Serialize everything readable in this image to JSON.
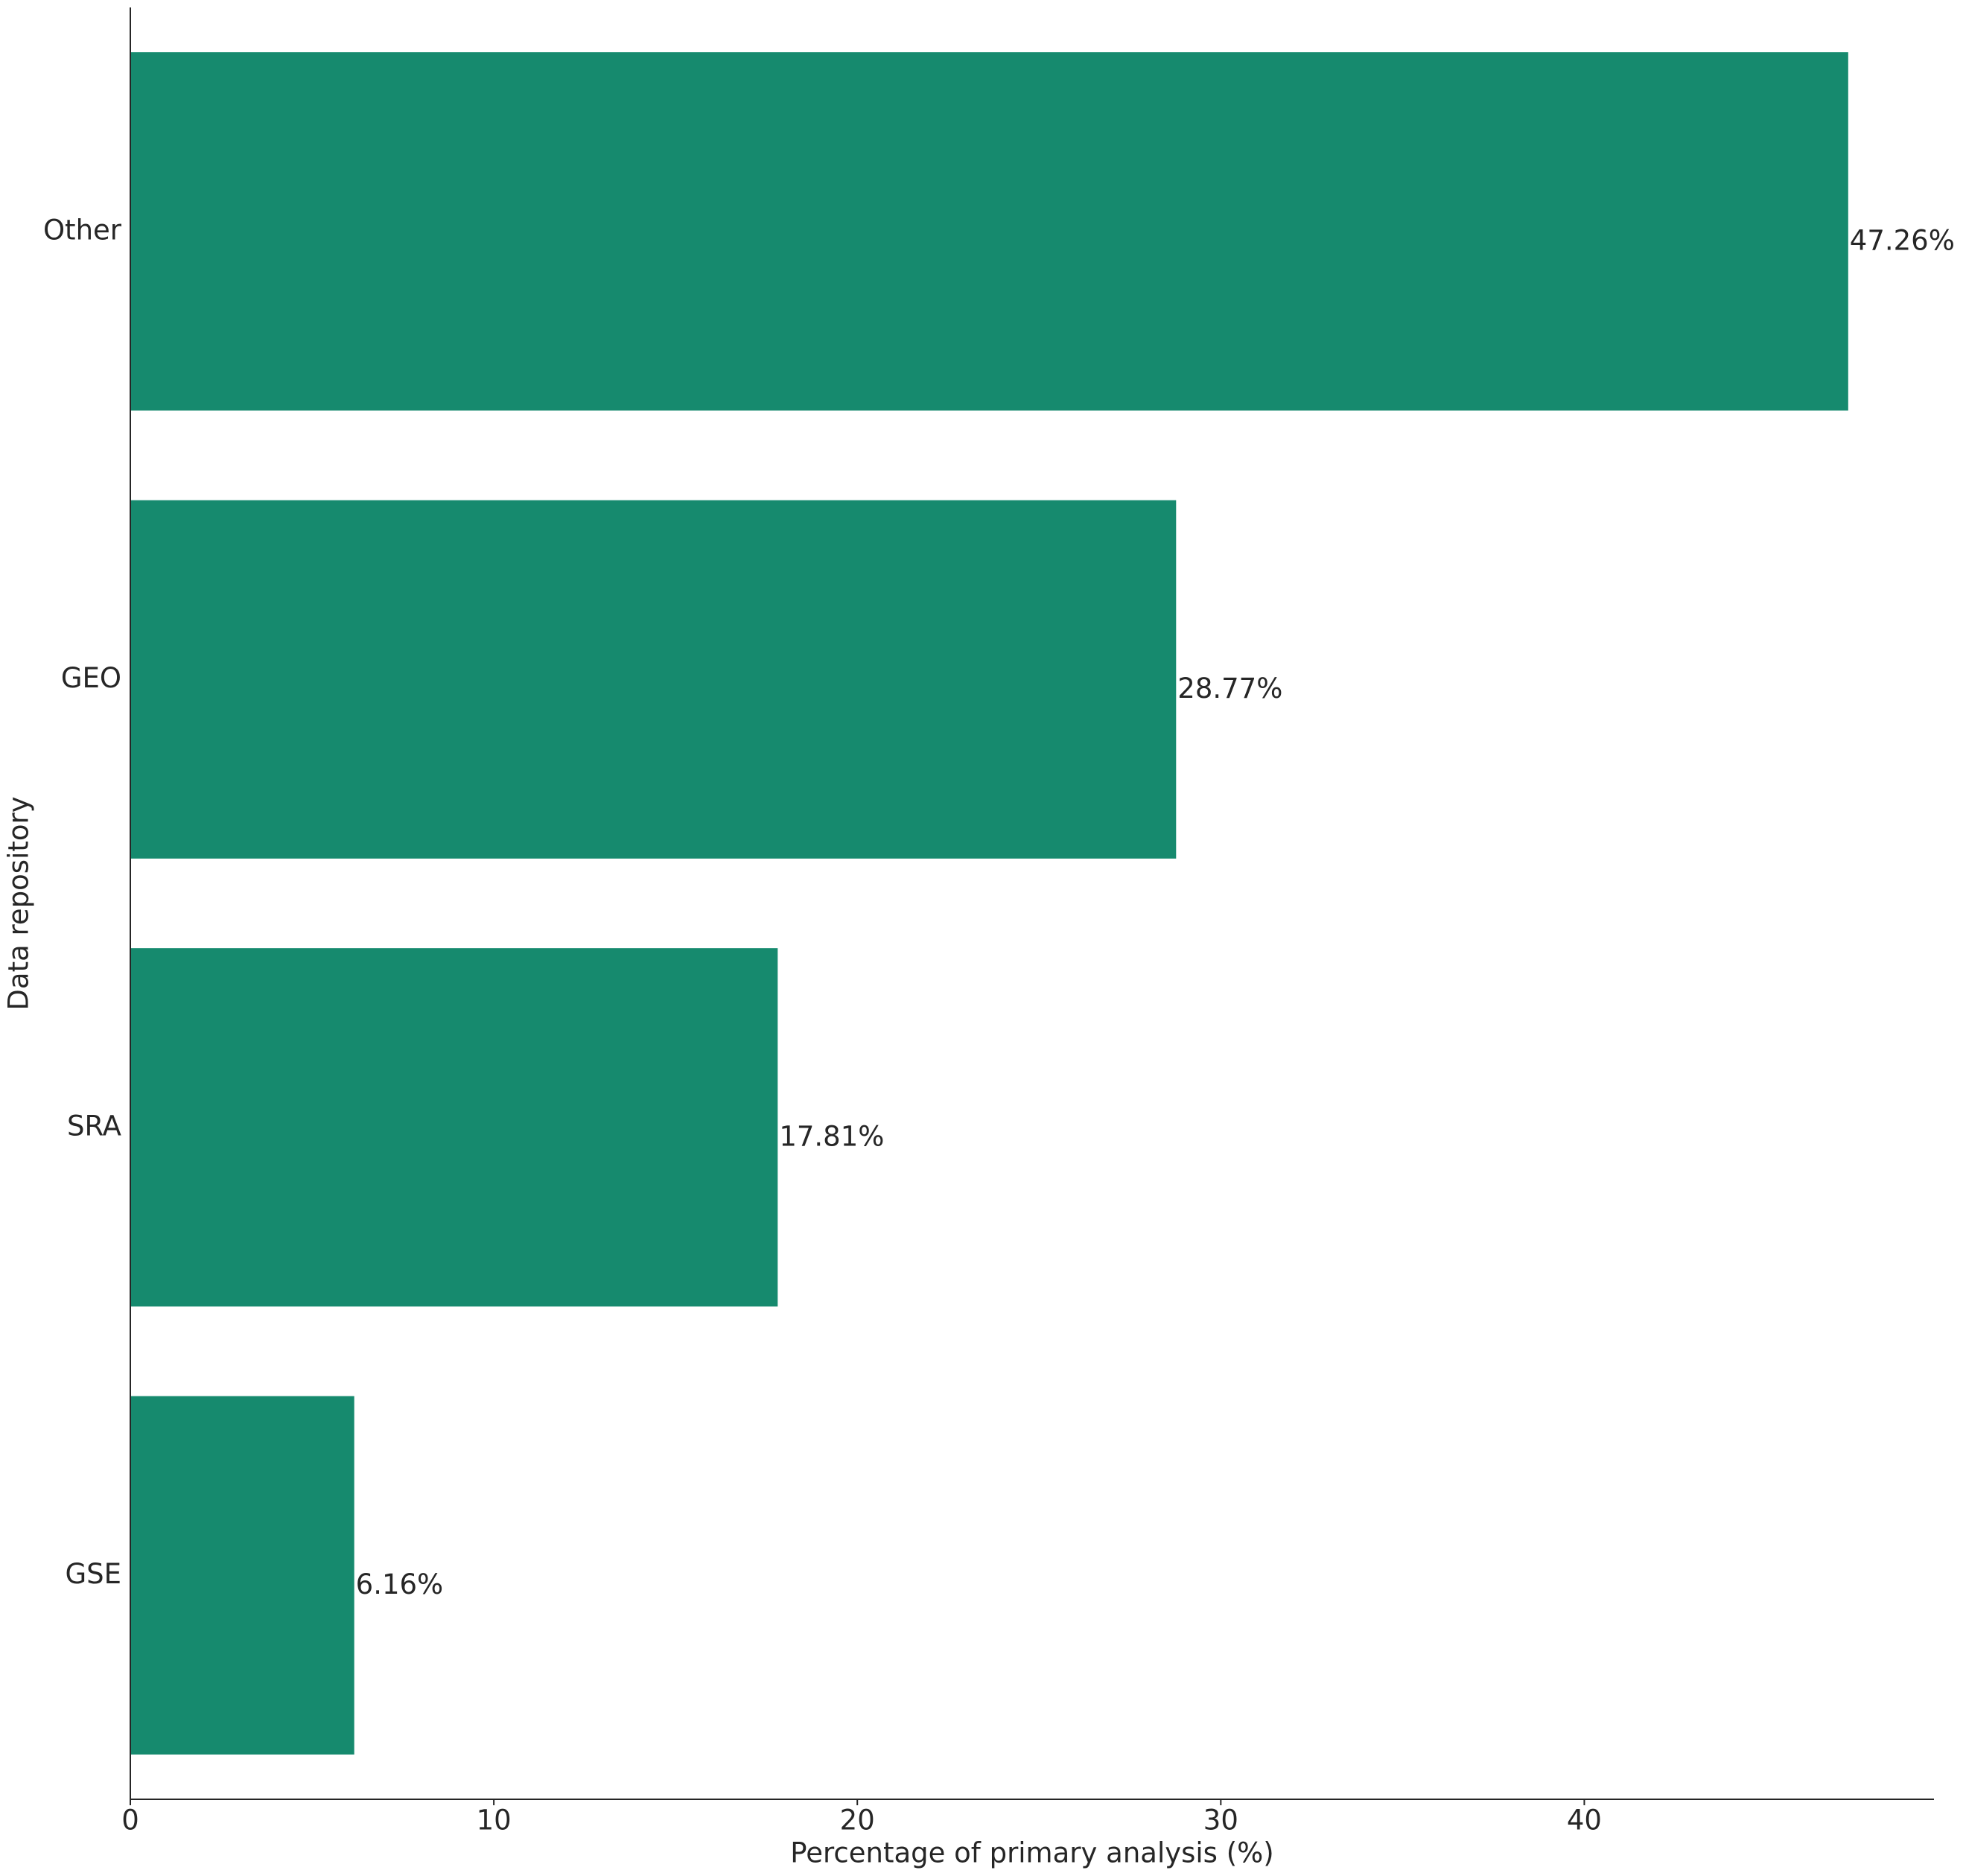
{
  "chart_data": {
    "type": "barh",
    "x_label": "Percentage of primary analysis (%)",
    "y_label": "Data repository",
    "categories": [
      "Other",
      "GEO",
      "SRA",
      "GSE"
    ],
    "values": [
      47.26,
      28.77,
      17.81,
      6.16
    ],
    "value_labels": [
      "47.26%",
      "28.77%",
      "17.81%",
      "6.16%"
    ],
    "color": "#168a6e",
    "xlim": [
      0,
      49.62
    ],
    "xticks": [
      0,
      10,
      20,
      30,
      40
    ],
    "grid": false
  }
}
